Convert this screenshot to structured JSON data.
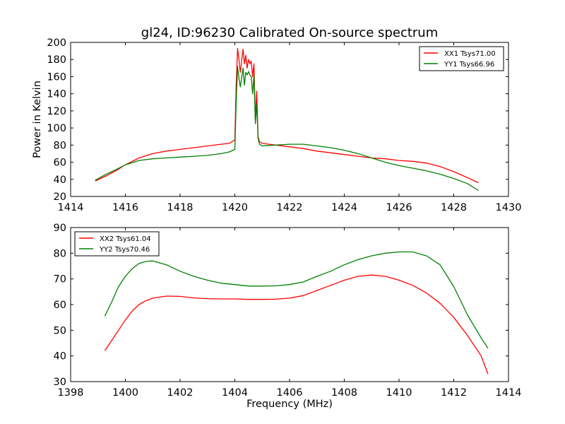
{
  "chart_data": [
    {
      "type": "line",
      "title": "gl24, ID:96230 Calibrated On-source spectrum",
      "xlabel": "",
      "ylabel": "Power in Kelvin",
      "xlim": [
        1414,
        1430
      ],
      "ylim": [
        20,
        200
      ],
      "xticks": [
        1414,
        1416,
        1418,
        1420,
        1422,
        1424,
        1426,
        1428,
        1430
      ],
      "yticks": [
        20,
        40,
        60,
        80,
        100,
        120,
        140,
        160,
        180,
        200
      ],
      "grid": false,
      "legend_position": "top-right",
      "series": [
        {
          "name": "XX1 Tsys71.00",
          "color": "#ff0000",
          "x": [
            1414.9,
            1415.3,
            1415.7,
            1416.0,
            1416.5,
            1417.0,
            1417.5,
            1418.0,
            1418.5,
            1419.0,
            1419.5,
            1419.8,
            1420.0,
            1420.05,
            1420.1,
            1420.15,
            1420.2,
            1420.3,
            1420.35,
            1420.4,
            1420.45,
            1420.5,
            1420.55,
            1420.6,
            1420.65,
            1420.7,
            1420.75,
            1420.8,
            1420.85,
            1420.9,
            1420.95,
            1421.0,
            1421.5,
            1422.0,
            1422.5,
            1423.0,
            1423.5,
            1424.0,
            1424.5,
            1425.0,
            1425.5,
            1426.0,
            1426.5,
            1427.0,
            1427.5,
            1428.0,
            1428.5,
            1428.9
          ],
          "y": [
            38,
            44,
            51,
            57,
            65,
            70,
            73,
            75,
            77,
            79,
            81,
            82,
            86,
            150,
            193,
            180,
            165,
            192,
            175,
            185,
            170,
            180,
            175,
            178,
            160,
            175,
            110,
            143,
            90,
            84,
            83,
            82,
            80,
            78,
            76,
            73,
            71,
            69,
            67,
            65,
            64,
            62,
            61,
            59,
            55,
            49,
            42,
            36
          ]
        },
        {
          "name": "YY1 Tsys66.96",
          "color": "#008000",
          "x": [
            1414.9,
            1415.3,
            1415.7,
            1416.0,
            1416.5,
            1417.0,
            1417.5,
            1418.0,
            1418.5,
            1419.0,
            1419.5,
            1419.8,
            1420.0,
            1420.05,
            1420.1,
            1420.15,
            1420.2,
            1420.3,
            1420.35,
            1420.4,
            1420.45,
            1420.5,
            1420.55,
            1420.6,
            1420.65,
            1420.7,
            1420.75,
            1420.8,
            1420.85,
            1420.9,
            1420.95,
            1421.0,
            1421.5,
            1422.0,
            1422.5,
            1423.0,
            1423.5,
            1424.0,
            1424.5,
            1425.0,
            1425.5,
            1426.0,
            1426.5,
            1427.0,
            1427.5,
            1428.0,
            1428.5,
            1428.9
          ],
          "y": [
            39,
            46,
            52,
            57,
            62,
            64,
            65,
            66,
            67,
            68,
            70,
            72,
            75,
            130,
            172,
            158,
            148,
            170,
            150,
            165,
            162,
            166,
            162,
            160,
            140,
            162,
            105,
            128,
            88,
            81,
            80,
            79,
            80,
            81,
            81,
            79,
            77,
            74,
            70,
            65,
            60,
            56,
            53,
            50,
            46,
            41,
            35,
            27
          ]
        }
      ]
    },
    {
      "type": "line",
      "title": "",
      "xlabel": "Frequency (MHz)",
      "ylabel": "",
      "xlim": [
        1398,
        1414
      ],
      "ylim": [
        30,
        90
      ],
      "xticks": [
        1398,
        1400,
        1402,
        1404,
        1406,
        1408,
        1410,
        1412,
        1414
      ],
      "yticks": [
        30,
        40,
        50,
        60,
        70,
        80,
        90
      ],
      "grid": false,
      "legend_position": "top-left",
      "series": [
        {
          "name": "XX2 Tsys61.04",
          "color": "#ff0000",
          "x": [
            1399.25,
            1399.5,
            1399.75,
            1400.0,
            1400.25,
            1400.5,
            1400.75,
            1401.0,
            1401.5,
            1402.0,
            1402.5,
            1403.0,
            1403.5,
            1404.0,
            1404.5,
            1405.0,
            1405.5,
            1406.0,
            1406.5,
            1407.0,
            1407.5,
            1408.0,
            1408.5,
            1409.0,
            1409.5,
            1410.0,
            1410.5,
            1411.0,
            1411.5,
            1412.0,
            1412.5,
            1413.0,
            1413.25
          ],
          "y": [
            42,
            46,
            50,
            54,
            57.5,
            60,
            61.5,
            62.5,
            63.3,
            63.2,
            62.6,
            62.3,
            62.2,
            62.2,
            62,
            62,
            62.1,
            62.5,
            63.5,
            65.5,
            67.5,
            69.5,
            71,
            71.5,
            71,
            69.5,
            67.5,
            64.5,
            60.5,
            55,
            48,
            40,
            33
          ]
        },
        {
          "name": "YY2 Tsys70.46",
          "color": "#008000",
          "x": [
            1399.25,
            1399.5,
            1399.75,
            1400.0,
            1400.25,
            1400.5,
            1400.75,
            1401.0,
            1401.5,
            1402.0,
            1402.5,
            1403.0,
            1403.5,
            1404.0,
            1404.5,
            1405.0,
            1405.5,
            1406.0,
            1406.5,
            1407.0,
            1407.5,
            1408.0,
            1408.5,
            1409.0,
            1409.5,
            1410.0,
            1410.5,
            1411.0,
            1411.5,
            1412.0,
            1412.5,
            1413.0,
            1413.25
          ],
          "y": [
            55.5,
            61,
            67,
            71,
            74,
            76,
            76.8,
            77,
            75.5,
            73,
            71,
            69.5,
            68.3,
            67.8,
            67.2,
            67.2,
            67.3,
            67.8,
            68.8,
            71,
            73,
            75.5,
            77.5,
            79,
            80,
            80.5,
            80.5,
            79,
            75.5,
            67,
            56,
            47,
            43
          ]
        }
      ]
    }
  ]
}
